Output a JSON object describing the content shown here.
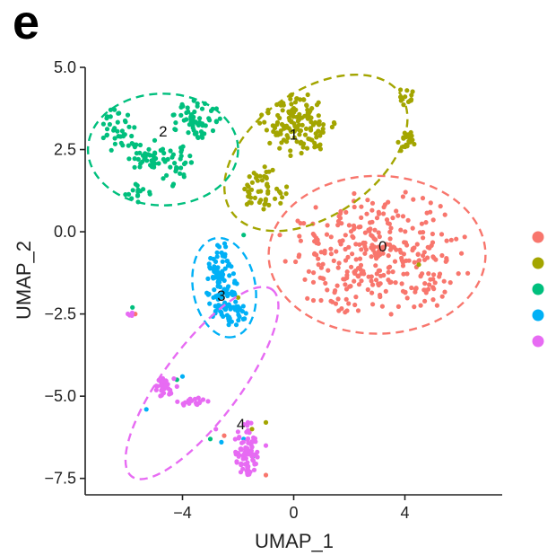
{
  "panel_letter": "e",
  "chart_data": {
    "type": "scatter",
    "title": "",
    "xlabel": "UMAP_1",
    "ylabel": "UMAP_2",
    "xlim": [
      -7.5,
      7.5
    ],
    "ylim": [
      -8.0,
      5.0
    ],
    "x_ticks": [
      -4,
      0,
      4
    ],
    "x_tick_labels": [
      "−4",
      "0",
      "4"
    ],
    "y_ticks": [
      5.0,
      2.5,
      0.0,
      -2.5,
      -5.0,
      -7.5
    ],
    "y_tick_labels": [
      "5.0",
      "2.5",
      "0.0",
      "−2.5",
      "−5.0",
      "−7.5"
    ],
    "grid": false,
    "legend_position": "right",
    "series": [
      {
        "name": "",
        "color": "#F8766D",
        "label": "0",
        "label_at": [
          3.2,
          -0.6
        ],
        "ellipse": {
          "cx": 3.0,
          "cy": -0.7,
          "rx": 3.9,
          "ry": 2.4,
          "angle": 0
        },
        "regions": [
          {
            "cx": 3.0,
            "cy": -0.7,
            "rx": 3.4,
            "ry": 2.0,
            "n": 330
          }
        ],
        "outliers": [
          [
            -5.7,
            -2.5
          ],
          [
            -2.5,
            -6.2
          ],
          [
            -1.0,
            -7.4
          ],
          [
            -0.5,
            -0.1
          ],
          [
            -0.3,
            -0.9
          ]
        ]
      },
      {
        "name": "",
        "color": "#A3A500",
        "label": "1",
        "label_at": [
          0.0,
          2.8
        ],
        "ellipse": {
          "cx": 0.8,
          "cy": 2.4,
          "rx": 3.7,
          "ry": 1.9,
          "angle": -35
        },
        "regions": [
          {
            "cx": 0.1,
            "cy": 3.3,
            "rx": 1.4,
            "ry": 1.0,
            "n": 140
          },
          {
            "cx": -1.1,
            "cy": 1.3,
            "rx": 0.9,
            "ry": 0.7,
            "n": 50
          },
          {
            "cx": 4.1,
            "cy": 2.7,
            "rx": 0.35,
            "ry": 0.35,
            "n": 22
          },
          {
            "cx": 4.1,
            "cy": 4.2,
            "rx": 0.3,
            "ry": 0.45,
            "n": 12
          }
        ],
        "outliers": [
          [
            -1.5,
            -6.0
          ],
          [
            -1.0,
            -5.8
          ],
          [
            -2.0,
            -2.0
          ],
          [
            4.5,
            -1.0
          ]
        ]
      },
      {
        "name": "",
        "color": "#00BF7D",
        "label": "2",
        "label_at": [
          -4.7,
          2.9
        ],
        "ellipse": {
          "cx": -4.7,
          "cy": 2.5,
          "rx": 2.7,
          "ry": 1.7,
          "angle": 0
        },
        "regions": [
          {
            "cx": -6.3,
            "cy": 3.1,
            "rx": 0.6,
            "ry": 0.7,
            "n": 35
          },
          {
            "cx": -5.3,
            "cy": 2.4,
            "rx": 0.7,
            "ry": 0.6,
            "n": 40
          },
          {
            "cx": -3.5,
            "cy": 3.4,
            "rx": 1.0,
            "ry": 0.6,
            "n": 60
          },
          {
            "cx": -4.2,
            "cy": 2.0,
            "rx": 0.6,
            "ry": 0.7,
            "n": 30
          },
          {
            "cx": -5.6,
            "cy": 1.2,
            "rx": 0.6,
            "ry": 0.3,
            "n": 15
          }
        ],
        "outliers": [
          [
            -5.8,
            -2.3
          ],
          [
            -4.2,
            -4.5
          ],
          [
            -1.4,
            -6.8
          ],
          [
            -3.0,
            -6.3
          ],
          [
            -1.8,
            -0.1
          ]
        ]
      },
      {
        "name": "",
        "color": "#00B0F6",
        "label": "3",
        "label_at": [
          -2.6,
          -2.1
        ],
        "ellipse": {
          "cx": -2.5,
          "cy": -1.7,
          "rx": 1.8,
          "ry": 0.95,
          "angle": 80
        },
        "regions": [
          {
            "cx": -2.6,
            "cy": -1.6,
            "rx": 0.6,
            "ry": 1.3,
            "n": 110
          },
          {
            "cx": -2.1,
            "cy": -2.5,
            "rx": 0.5,
            "ry": 0.4,
            "n": 30
          }
        ],
        "outliers": [
          [
            -4.0,
            -4.4
          ],
          [
            -5.3,
            -5.4
          ],
          [
            -2.6,
            -6.4
          ],
          [
            -1.8,
            -6.3
          ]
        ]
      },
      {
        "name": "",
        "color": "#E76BF3",
        "label": "4",
        "label_at": [
          -1.9,
          -6.0
        ],
        "ellipse": {
          "cx": -3.3,
          "cy": -4.6,
          "rx": 4.2,
          "ry": 1.15,
          "angle": -53
        },
        "regions": [
          {
            "cx": -4.6,
            "cy": -4.7,
            "rx": 0.4,
            "ry": 0.4,
            "n": 30
          },
          {
            "cx": -3.6,
            "cy": -5.2,
            "rx": 0.6,
            "ry": 0.2,
            "n": 18
          },
          {
            "cx": -1.7,
            "cy": -6.6,
            "rx": 0.45,
            "ry": 0.9,
            "n": 80
          },
          {
            "cx": -5.9,
            "cy": -2.5,
            "rx": 0.12,
            "ry": 0.12,
            "n": 4
          }
        ],
        "outliers": [
          [
            -2.8,
            -6.0
          ],
          [
            -1.0,
            -6.5
          ]
        ]
      }
    ]
  }
}
